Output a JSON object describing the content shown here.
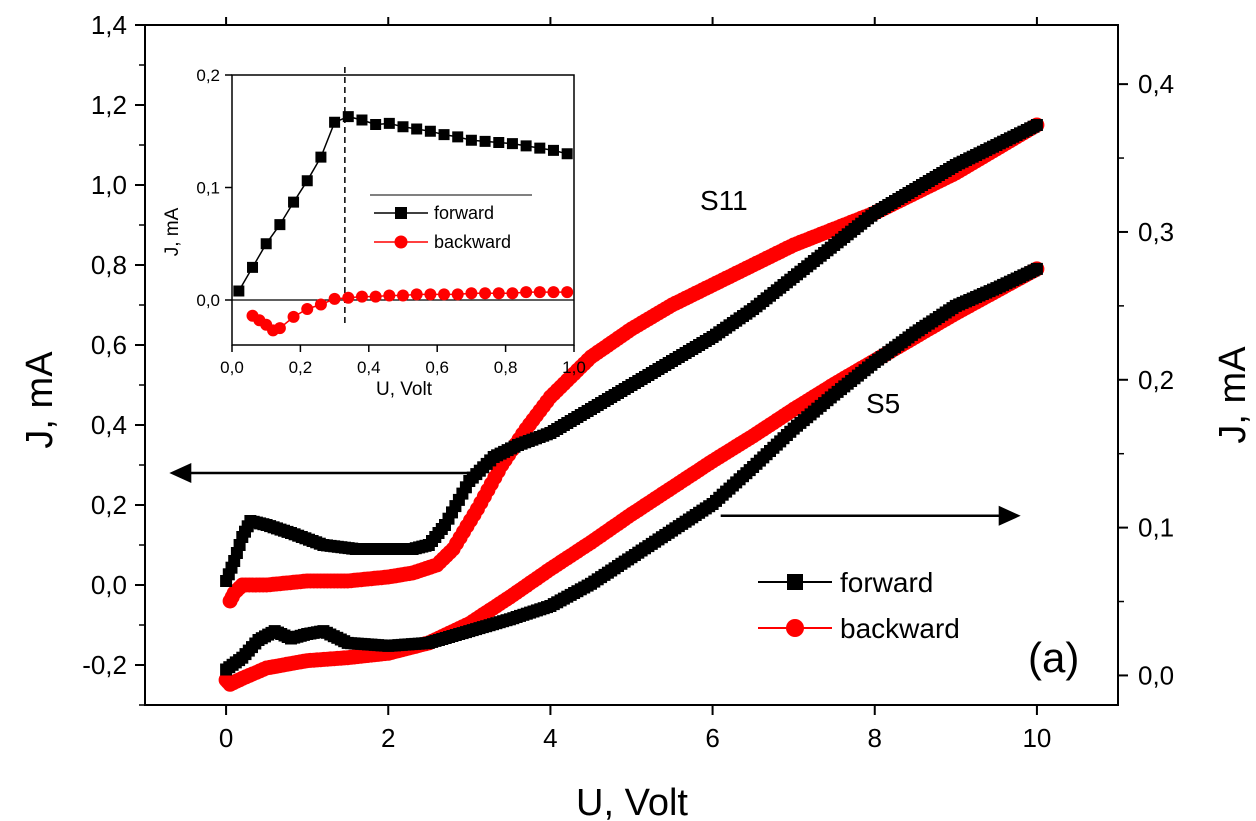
{
  "chart_data": [
    {
      "type": "scatter",
      "panel_label": "(a)",
      "xlabel": "U, Volt",
      "ylabel_left": "J, mA",
      "ylabel_right": "J, mA",
      "xlim": [
        -1,
        11
      ],
      "ylim_left": [
        -0.3,
        1.4
      ],
      "ylim_right": [
        -0.02,
        0.44
      ],
      "x_ticks": [
        0,
        2,
        4,
        6,
        8,
        10
      ],
      "x_tick_labels": [
        "0",
        "2",
        "4",
        "6",
        "8",
        "10"
      ],
      "y_left_ticks": [
        -0.2,
        0.0,
        0.2,
        0.4,
        0.6,
        0.8,
        1.0,
        1.2,
        1.4
      ],
      "y_left_tick_labels": [
        "-0,2",
        "0,0",
        "0,2",
        "0,4",
        "0,6",
        "0,8",
        "1,0",
        "1,2",
        "1,4"
      ],
      "y_right_ticks": [
        0.0,
        0.1,
        0.2,
        0.3,
        0.4
      ],
      "y_right_tick_labels": [
        "0,0",
        "0,1",
        "0,2",
        "0,3",
        "0,4"
      ],
      "grid": false,
      "legend_position": "bottom-right",
      "legend": [
        "forward",
        "backward"
      ],
      "colors": {
        "forward": "#000000",
        "backward": "#ff0000"
      },
      "annotations": [
        "S11",
        "S5"
      ],
      "arrows": [
        {
          "axis": "left",
          "direction": "left",
          "from": [
            3.1,
            0.28
          ],
          "to": [
            -0.7,
            0.28
          ]
        },
        {
          "axis": "right",
          "direction": "right",
          "from": [
            6.1,
            0.108
          ],
          "to": [
            9.8,
            0.108
          ]
        }
      ],
      "series": [
        {
          "name": "forward",
          "curve": "S11",
          "axis": "left",
          "marker": "square",
          "x": [
            0.0,
            0.1,
            0.2,
            0.3,
            0.5,
            0.8,
            1.2,
            1.6,
            2.0,
            2.3,
            2.5,
            2.7,
            3.0,
            3.3,
            3.6,
            4.0,
            4.5,
            5.0,
            5.5,
            6.0,
            6.5,
            7.0,
            7.5,
            8.0,
            8.5,
            9.0,
            9.5,
            10.0
          ],
          "y": [
            0.01,
            0.06,
            0.12,
            0.16,
            0.15,
            0.13,
            0.1,
            0.09,
            0.09,
            0.09,
            0.1,
            0.15,
            0.26,
            0.32,
            0.35,
            0.38,
            0.44,
            0.5,
            0.56,
            0.62,
            0.69,
            0.77,
            0.85,
            0.93,
            0.99,
            1.05,
            1.1,
            1.15
          ]
        },
        {
          "name": "backward",
          "curve": "S11",
          "axis": "left",
          "marker": "circle",
          "x": [
            10.0,
            9.5,
            9.0,
            8.5,
            8.0,
            7.5,
            7.0,
            6.5,
            6.0,
            5.5,
            5.0,
            4.5,
            4.0,
            3.7,
            3.4,
            3.1,
            2.8,
            2.6,
            2.3,
            2.0,
            1.5,
            1.0,
            0.5,
            0.2,
            0.1,
            0.05
          ],
          "y": [
            1.15,
            1.09,
            1.03,
            0.98,
            0.93,
            0.89,
            0.85,
            0.8,
            0.75,
            0.7,
            0.64,
            0.57,
            0.47,
            0.39,
            0.3,
            0.19,
            0.09,
            0.05,
            0.03,
            0.02,
            0.01,
            0.01,
            0.0,
            0.0,
            -0.02,
            -0.04
          ]
        },
        {
          "name": "forward",
          "curve": "S5",
          "axis": "right",
          "marker": "square",
          "x": [
            0.0,
            0.2,
            0.4,
            0.6,
            0.8,
            1.0,
            1.2,
            1.5,
            2.0,
            2.5,
            3.0,
            3.5,
            4.0,
            4.5,
            5.0,
            5.5,
            6.0,
            6.5,
            7.0,
            7.5,
            8.0,
            8.5,
            9.0,
            9.5,
            10.0
          ],
          "y": [
            0.004,
            0.012,
            0.024,
            0.03,
            0.025,
            0.028,
            0.03,
            0.022,
            0.02,
            0.022,
            0.03,
            0.038,
            0.047,
            0.062,
            0.08,
            0.098,
            0.116,
            0.141,
            0.167,
            0.19,
            0.212,
            0.232,
            0.25,
            0.262,
            0.275
          ]
        },
        {
          "name": "backward",
          "curve": "S5",
          "axis": "right",
          "marker": "circle",
          "x": [
            10.0,
            9.5,
            9.0,
            8.5,
            8.0,
            7.5,
            7.0,
            6.5,
            6.0,
            5.5,
            5.0,
            4.5,
            4.0,
            3.5,
            3.0,
            2.5,
            2.0,
            1.5,
            1.0,
            0.5,
            0.2,
            0.05,
            0.0
          ],
          "y": [
            0.275,
            0.26,
            0.245,
            0.229,
            0.213,
            0.197,
            0.18,
            0.162,
            0.145,
            0.127,
            0.109,
            0.09,
            0.072,
            0.053,
            0.035,
            0.022,
            0.015,
            0.012,
            0.01,
            0.005,
            -0.002,
            -0.006,
            -0.003
          ]
        }
      ]
    },
    {
      "type": "line",
      "role": "inset",
      "xlabel": "U, Volt",
      "ylabel": "J, mA",
      "xlim": [
        0.0,
        1.0
      ],
      "ylim": [
        -0.04,
        0.2
      ],
      "x_ticks": [
        0.0,
        0.2,
        0.4,
        0.6,
        0.8,
        1.0
      ],
      "x_tick_labels": [
        "0,0",
        "0,2",
        "0,4",
        "0,6",
        "0,8",
        "1,0"
      ],
      "y_ticks": [
        0.0,
        0.1,
        0.2
      ],
      "y_tick_labels": [
        "0,0",
        "0,1",
        "0,2"
      ],
      "grid": false,
      "legend_position": "center-right",
      "legend": [
        "forward",
        "backward"
      ],
      "dashed_vline_x": 0.33,
      "zero_line": true,
      "series": [
        {
          "name": "forward",
          "marker": "square",
          "color": "#000000",
          "x": [
            0.02,
            0.06,
            0.1,
            0.14,
            0.18,
            0.22,
            0.26,
            0.3,
            0.34,
            0.38,
            0.42,
            0.46,
            0.5,
            0.54,
            0.58,
            0.62,
            0.66,
            0.7,
            0.74,
            0.78,
            0.82,
            0.86,
            0.9,
            0.94,
            0.98
          ],
          "y": [
            0.008,
            0.029,
            0.05,
            0.067,
            0.087,
            0.106,
            0.127,
            0.158,
            0.163,
            0.16,
            0.156,
            0.157,
            0.154,
            0.152,
            0.15,
            0.147,
            0.145,
            0.142,
            0.141,
            0.14,
            0.139,
            0.137,
            0.135,
            0.133,
            0.13
          ]
        },
        {
          "name": "backward",
          "marker": "circle",
          "color": "#ff0000",
          "x": [
            0.06,
            0.08,
            0.1,
            0.12,
            0.14,
            0.18,
            0.22,
            0.26,
            0.3,
            0.34,
            0.38,
            0.42,
            0.46,
            0.5,
            0.54,
            0.58,
            0.62,
            0.66,
            0.7,
            0.74,
            0.78,
            0.82,
            0.86,
            0.9,
            0.94,
            0.98
          ],
          "y": [
            -0.014,
            -0.018,
            -0.022,
            -0.027,
            -0.025,
            -0.015,
            -0.008,
            -0.004,
            0.001,
            0.002,
            0.003,
            0.003,
            0.004,
            0.004,
            0.005,
            0.005,
            0.005,
            0.005,
            0.006,
            0.006,
            0.006,
            0.006,
            0.007,
            0.007,
            0.007,
            0.007
          ]
        }
      ]
    }
  ]
}
